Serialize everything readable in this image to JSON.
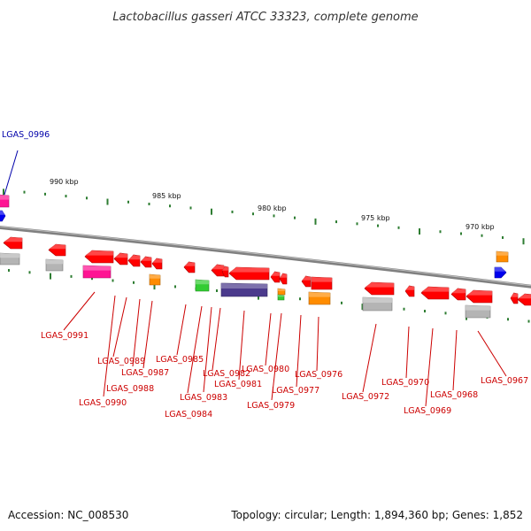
{
  "title": "Lactobacillus gasseri ATCC 33323, complete genome",
  "accession_text": "Accession: NC_008530",
  "stats_text": "Topology: circular; Length: 1,894,360 bp; Genes: 1,852",
  "colors": {
    "red": "#ff0000",
    "gray": "#b4b4b4",
    "magenta": "#ff1493",
    "orange": "#ff8c00",
    "green": "#33cc33",
    "blue": "#0000ee",
    "purple": "#4b3a8c",
    "tick": "#2e7d32",
    "backbone": "#808080",
    "label_red": "#cc0000",
    "label_blue": "#0000aa"
  },
  "scale_labels": [
    "990 kbp",
    "985 kbp",
    "980 kbp",
    "975 kbp",
    "970 kbp"
  ],
  "highlight_label": "LGAS_0996",
  "gene_labels": [
    "LGAS_0991",
    "LGAS_0989",
    "LGAS_0987",
    "LGAS_0988",
    "LGAS_0990",
    "LGAS_0985",
    "LGAS_0982",
    "LGAS_0983",
    "LGAS_0984",
    "LGAS_0981",
    "LGAS_0980",
    "LGAS_0977",
    "LGAS_0979",
    "LGAS_0976",
    "LGAS_0972",
    "LGAS_0970",
    "LGAS_0969",
    "LGAS_0968",
    "LGAS_0967"
  ]
}
